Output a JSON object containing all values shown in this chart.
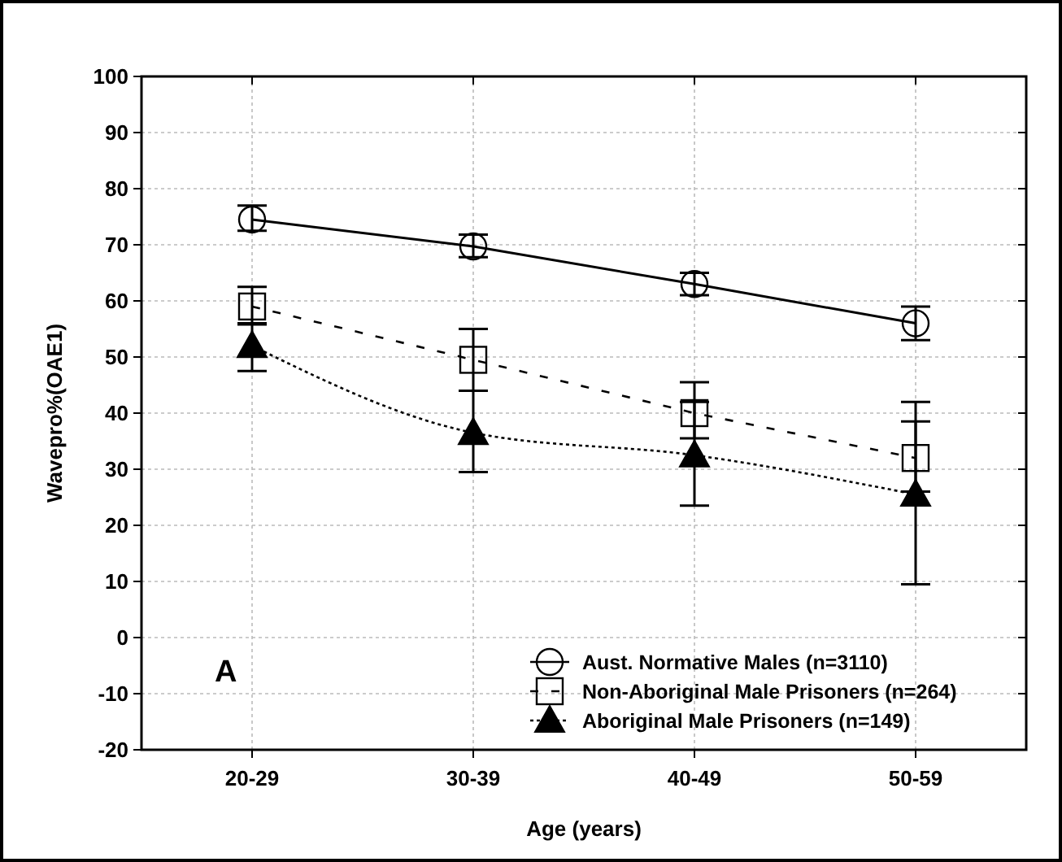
{
  "chart_data": {
    "type": "line",
    "xlabel": "Age (years)",
    "ylabel": "Wavepro%(OAE1)",
    "categories": [
      "20-29",
      "30-39",
      "40-49",
      "50-59"
    ],
    "series": [
      {
        "name": "Aust. Normative Males (n=3110)",
        "color": "#000000",
        "marker": "circle",
        "line_style": "solid",
        "values": [
          74.5,
          69.7,
          63,
          56
        ],
        "errors": [
          [
            72.5,
            77
          ],
          [
            67.8,
            71.8
          ],
          [
            61,
            65
          ],
          [
            53,
            59
          ]
        ]
      },
      {
        "name": "Non-Aboriginal Male Prisoners (n=264)",
        "color": "#000000",
        "marker": "square",
        "line_style": "dashed",
        "values": [
          59,
          49.5,
          40,
          32
        ],
        "errors": [
          [
            55.8,
            62.5
          ],
          [
            44,
            55
          ],
          [
            35.5,
            45.5
          ],
          [
            26,
            38.5
          ]
        ]
      },
      {
        "name": "Aboriginal Male Prisoners (n=149)",
        "color": "#000000",
        "marker": "triangle",
        "line_style": "dotted",
        "values": [
          52,
          36.5,
          32.5,
          25.5
        ],
        "errors": [
          [
            47.5,
            56
          ],
          [
            29.5,
            44
          ],
          [
            23.5,
            42
          ],
          [
            9.5,
            42
          ]
        ]
      }
    ],
    "ylim": [
      -20,
      100
    ],
    "yticks": [
      -20,
      -10,
      0,
      10,
      20,
      30,
      40,
      50,
      60,
      70,
      80,
      90,
      100
    ],
    "grid": true,
    "legend": "bottom right",
    "annotations": [
      "A"
    ]
  }
}
